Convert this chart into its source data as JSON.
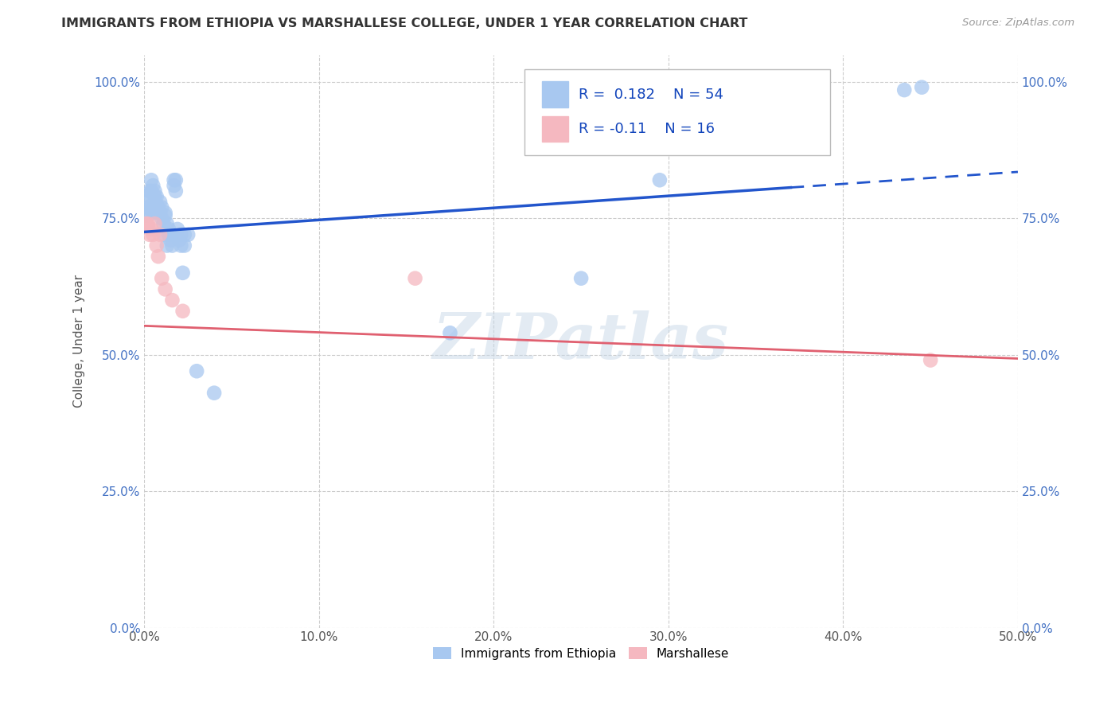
{
  "title": "IMMIGRANTS FROM ETHIOPIA VS MARSHALLESE COLLEGE, UNDER 1 YEAR CORRELATION CHART",
  "source": "Source: ZipAtlas.com",
  "ylabel": "College, Under 1 year",
  "xlim": [
    0.0,
    0.5
  ],
  "ylim": [
    0.0,
    1.05
  ],
  "xticks": [
    0.0,
    0.1,
    0.2,
    0.3,
    0.4,
    0.5
  ],
  "yticks": [
    0.0,
    0.25,
    0.5,
    0.75,
    1.0
  ],
  "legend_labels": [
    "Immigrants from Ethiopia",
    "Marshallese"
  ],
  "R_blue": 0.182,
  "N_blue": 54,
  "R_pink": -0.11,
  "N_pink": 16,
  "blue_color": "#A8C8F0",
  "pink_color": "#F5B8C0",
  "blue_line_color": "#2255CC",
  "pink_line_color": "#E06070",
  "watermark_text": "ZIPatlas",
  "watermark_color": "#C8D8E8",
  "grid_color": "#CCCCCC",
  "bg_color": "#FFFFFF",
  "tick_color_left": "#4472C4",
  "tick_color_bottom": "#555555",
  "blue_x": [
    0.001,
    0.001,
    0.002,
    0.002,
    0.003,
    0.003,
    0.003,
    0.004,
    0.004,
    0.005,
    0.005,
    0.006,
    0.006,
    0.006,
    0.007,
    0.007,
    0.008,
    0.008,
    0.009,
    0.009,
    0.01,
    0.01,
    0.011,
    0.011,
    0.012,
    0.012,
    0.013,
    0.013,
    0.014,
    0.014,
    0.015,
    0.015,
    0.016,
    0.016,
    0.017,
    0.017,
    0.018,
    0.018,
    0.019,
    0.02,
    0.021,
    0.021,
    0.022,
    0.023,
    0.023,
    0.025,
    0.03,
    0.04,
    0.175,
    0.25,
    0.285,
    0.295,
    0.435,
    0.445
  ],
  "blue_y": [
    0.77,
    0.755,
    0.77,
    0.78,
    0.76,
    0.795,
    0.8,
    0.82,
    0.8,
    0.76,
    0.81,
    0.78,
    0.8,
    0.79,
    0.775,
    0.79,
    0.76,
    0.77,
    0.76,
    0.78,
    0.75,
    0.77,
    0.72,
    0.74,
    0.755,
    0.76,
    0.7,
    0.74,
    0.72,
    0.73,
    0.72,
    0.71,
    0.72,
    0.7,
    0.82,
    0.81,
    0.82,
    0.8,
    0.73,
    0.71,
    0.72,
    0.7,
    0.65,
    0.72,
    0.7,
    0.72,
    0.47,
    0.43,
    0.54,
    0.64,
    0.89,
    0.82,
    0.985,
    0.99
  ],
  "pink_x": [
    0.001,
    0.002,
    0.002,
    0.003,
    0.004,
    0.005,
    0.006,
    0.007,
    0.008,
    0.009,
    0.01,
    0.012,
    0.016,
    0.022,
    0.155,
    0.45
  ],
  "pink_y": [
    0.74,
    0.735,
    0.74,
    0.72,
    0.73,
    0.72,
    0.74,
    0.7,
    0.68,
    0.72,
    0.64,
    0.62,
    0.6,
    0.58,
    0.64,
    0.49
  ],
  "blue_line_x0": 0.0,
  "blue_line_x_solid_end": 0.37,
  "blue_line_x1": 0.5,
  "blue_line_y0": 0.725,
  "blue_line_y1": 0.835,
  "pink_line_y0": 0.553,
  "pink_line_y1": 0.493
}
